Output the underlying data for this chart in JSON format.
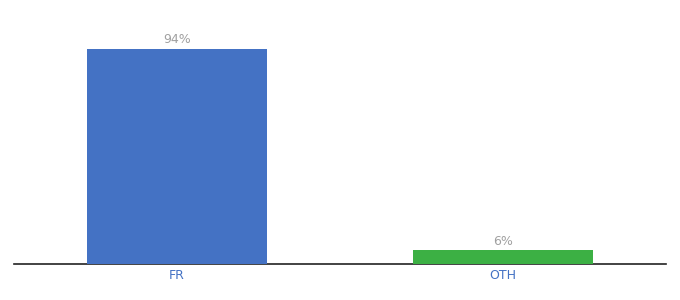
{
  "categories": [
    "FR",
    "OTH"
  ],
  "values": [
    94,
    6
  ],
  "bar_colors": [
    "#4472c4",
    "#3cb044"
  ],
  "value_labels": [
    "94%",
    "6%"
  ],
  "ylim": [
    0,
    105
  ],
  "background_color": "#ffffff",
  "label_color": "#a0a0a0",
  "label_fontsize": 9,
  "tick_fontsize": 9,
  "tick_color": "#4472c4",
  "bar_width": 0.55,
  "figsize": [
    6.8,
    3.0
  ],
  "dpi": 100
}
